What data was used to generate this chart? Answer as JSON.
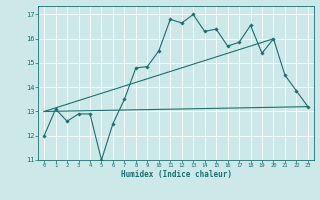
{
  "xlabel": "Humidex (Indice chaleur)",
  "bg_color": "#cce8e8",
  "line_color": "#1a7070",
  "grid_color": "#ffffff",
  "xlim": [
    -0.5,
    23.5
  ],
  "ylim": [
    11.0,
    17.35
  ],
  "yticks": [
    11,
    12,
    13,
    14,
    15,
    16,
    17
  ],
  "xticks": [
    0,
    1,
    2,
    3,
    4,
    5,
    6,
    7,
    8,
    9,
    10,
    11,
    12,
    13,
    14,
    15,
    16,
    17,
    18,
    19,
    20,
    21,
    22,
    23
  ],
  "line1_x": [
    0,
    1,
    2,
    3,
    4,
    5,
    6,
    7,
    8,
    9,
    10,
    11,
    12,
    13,
    14,
    15,
    16,
    17,
    18,
    19,
    20,
    21,
    22,
    23
  ],
  "line1_y": [
    12.0,
    13.1,
    12.6,
    12.9,
    12.9,
    11.0,
    12.5,
    13.5,
    14.8,
    14.85,
    15.5,
    16.8,
    16.65,
    17.0,
    16.3,
    16.4,
    15.7,
    15.85,
    16.55,
    15.4,
    16.0,
    14.5,
    13.85,
    13.2
  ],
  "line2_x": [
    0,
    23
  ],
  "line2_y": [
    13.0,
    13.2
  ],
  "line3_x": [
    0,
    20
  ],
  "line3_y": [
    13.0,
    16.0
  ]
}
